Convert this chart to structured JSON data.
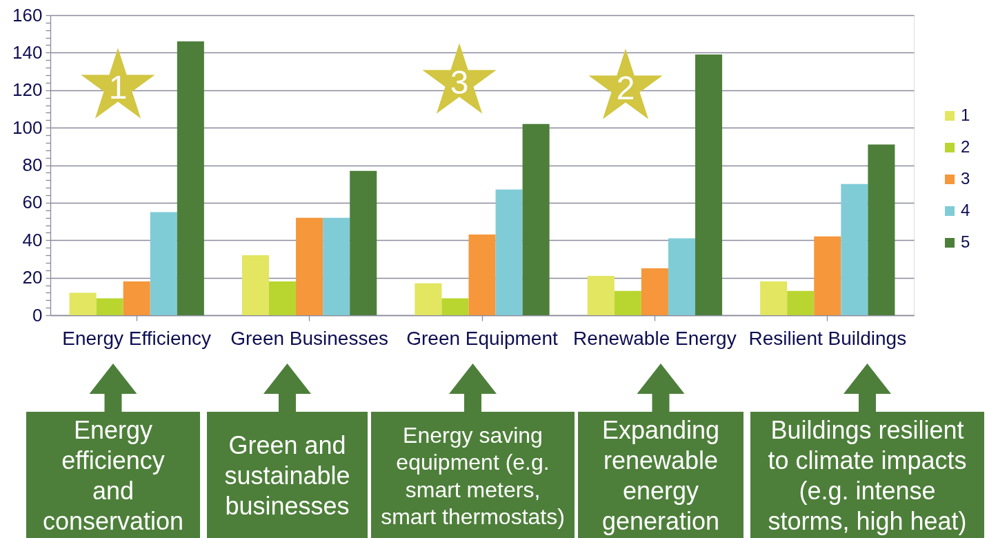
{
  "chart_data": {
    "type": "bar",
    "categories": [
      "Energy Efficiency",
      "Green Businesses",
      "Green Equipment",
      "Renewable Energy",
      "Resilient Buildings"
    ],
    "series": [
      {
        "name": "1",
        "color": "#e2e660",
        "values": [
          12,
          32,
          17,
          21,
          18
        ]
      },
      {
        "name": "2",
        "color": "#b9d630",
        "values": [
          9,
          18,
          9,
          13,
          13
        ]
      },
      {
        "name": "3",
        "color": "#f5973a",
        "values": [
          18,
          52,
          43,
          25,
          42
        ]
      },
      {
        "name": "4",
        "color": "#80ccd6",
        "values": [
          55,
          52,
          67,
          41,
          70
        ]
      },
      {
        "name": "5",
        "color": "#4d7f3a",
        "values": [
          146,
          77,
          102,
          139,
          91
        ]
      }
    ],
    "ylim": [
      0,
      160
    ],
    "yticks": [
      0,
      {
        "value": 4,
        "label": null
      },
      {
        "value": 8,
        "label": null
      },
      {
        "value": 12,
        "label": null
      },
      {
        "value": 16,
        "label": null
      },
      20,
      {
        "value": 24,
        "label": null
      },
      {
        "value": 28,
        "label": null
      },
      {
        "value": 32,
        "label": null
      },
      {
        "value": 36,
        "label": null
      },
      40,
      {
        "value": 44,
        "label": null
      },
      {
        "value": 48,
        "label": null
      },
      {
        "value": 52,
        "label": null
      },
      {
        "value": 56,
        "label": null
      },
      60,
      {
        "value": 64,
        "label": null
      },
      {
        "value": 68,
        "label": null
      },
      {
        "value": 72,
        "label": null
      },
      {
        "value": 76,
        "label": null
      },
      80,
      {
        "value": 84,
        "label": null
      },
      {
        "value": 88,
        "label": null
      },
      {
        "value": 92,
        "label": null
      },
      {
        "value": 96,
        "label": null
      },
      100,
      {
        "value": 104,
        "label": null
      },
      {
        "value": 108,
        "label": null
      },
      {
        "value": 112,
        "label": null
      },
      {
        "value": 116,
        "label": null
      },
      120,
      {
        "value": 124,
        "label": null
      },
      {
        "value": 128,
        "label": null
      },
      {
        "value": 132,
        "label": null
      },
      {
        "value": 136,
        "label": null
      },
      140,
      {
        "value": 144,
        "label": null
      },
      {
        "value": 148,
        "label": null
      },
      {
        "value": 152,
        "label": null
      },
      {
        "value": 156,
        "label": null
      },
      160
    ],
    "grid": "y",
    "legend": "right",
    "annotations": [
      "1",
      "3",
      "2",
      "Energy\nefficiency\nand\nconservation",
      "Green and\nsustainable\nbusinesses",
      "Energy saving\nequipment (e.g.\nsmart meters,\nsmart thermostats)",
      "Expanding\nrenewable\nenergy\ngeneration",
      "Buildings resilient\nto climate impacts\n(e.g. intense\nstorms, high heat)"
    ]
  }
}
